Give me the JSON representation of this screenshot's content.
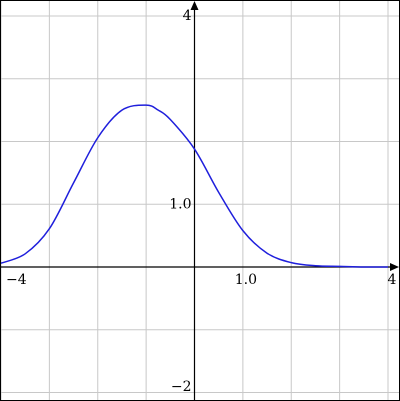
{
  "chart_data": {
    "type": "line",
    "title": "",
    "xlabel": "",
    "ylabel": "",
    "xlim": [
      -4,
      4
    ],
    "ylim": [
      -2,
      4
    ],
    "grid": true,
    "grid_step": 1,
    "x_tick_labels": [
      {
        "value": -4,
        "text": "−4"
      },
      {
        "value": 1,
        "text": "1.0"
      },
      {
        "value": 4,
        "text": "4"
      }
    ],
    "y_tick_labels": [
      {
        "value": 4,
        "text": "4"
      },
      {
        "value": 1,
        "text": "1.0"
      },
      {
        "value": -2,
        "text": "−2"
      }
    ],
    "series": [
      {
        "color": "#1f1fdc",
        "x": [
          -4,
          -3.5,
          -3,
          -2.5,
          -2,
          -1.5,
          -1,
          -0.75,
          -0.5,
          0,
          0.5,
          1,
          1.5,
          2,
          2.5,
          3,
          3.5,
          4
        ],
        "y": [
          0.06,
          0.21,
          0.61,
          1.34,
          2.06,
          2.5,
          2.58,
          2.5,
          2.35,
          1.88,
          1.19,
          0.58,
          0.22,
          0.07,
          0.02,
          0.01,
          0.0,
          0.0
        ]
      }
    ]
  },
  "colors": {
    "grid": "#c8c8c8",
    "axis": "#000000",
    "curve": "#1f1fdc",
    "border": "#000000"
  }
}
